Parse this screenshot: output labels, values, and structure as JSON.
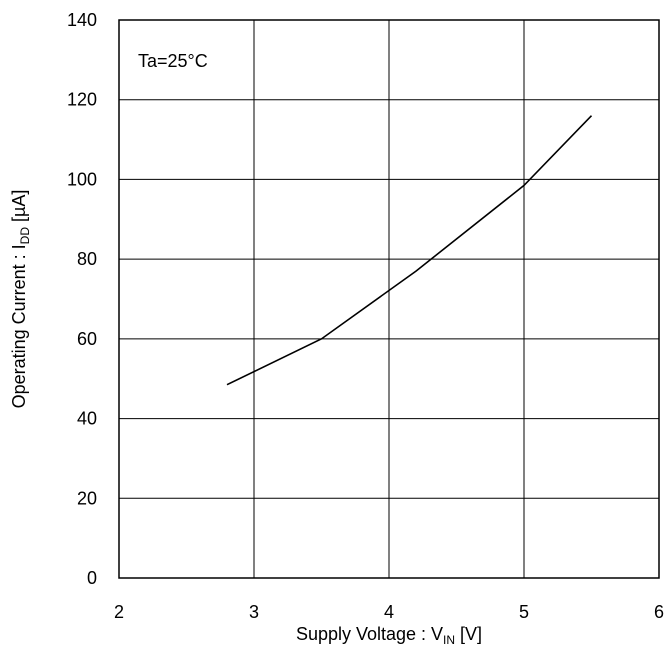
{
  "chart_data": {
    "type": "line",
    "annotation": "Ta=25°C",
    "xlabel": {
      "main": "Supply Voltage : V",
      "sub": "IN",
      "unit": " [V]"
    },
    "ylabel": {
      "main": "Operating Current : I",
      "sub": "DD",
      "unit": " [µA]"
    },
    "xlim": [
      2,
      6
    ],
    "ylim": [
      0,
      140
    ],
    "xticks": [
      2,
      3,
      4,
      5,
      6
    ],
    "yticks": [
      0,
      20,
      40,
      60,
      80,
      100,
      120,
      140
    ],
    "grid": true,
    "series": [
      {
        "x": [
          2.8,
          3.5,
          4.2,
          5.0,
          5.5
        ],
        "y": [
          48.5,
          60,
          77,
          98.5,
          116
        ]
      }
    ]
  }
}
